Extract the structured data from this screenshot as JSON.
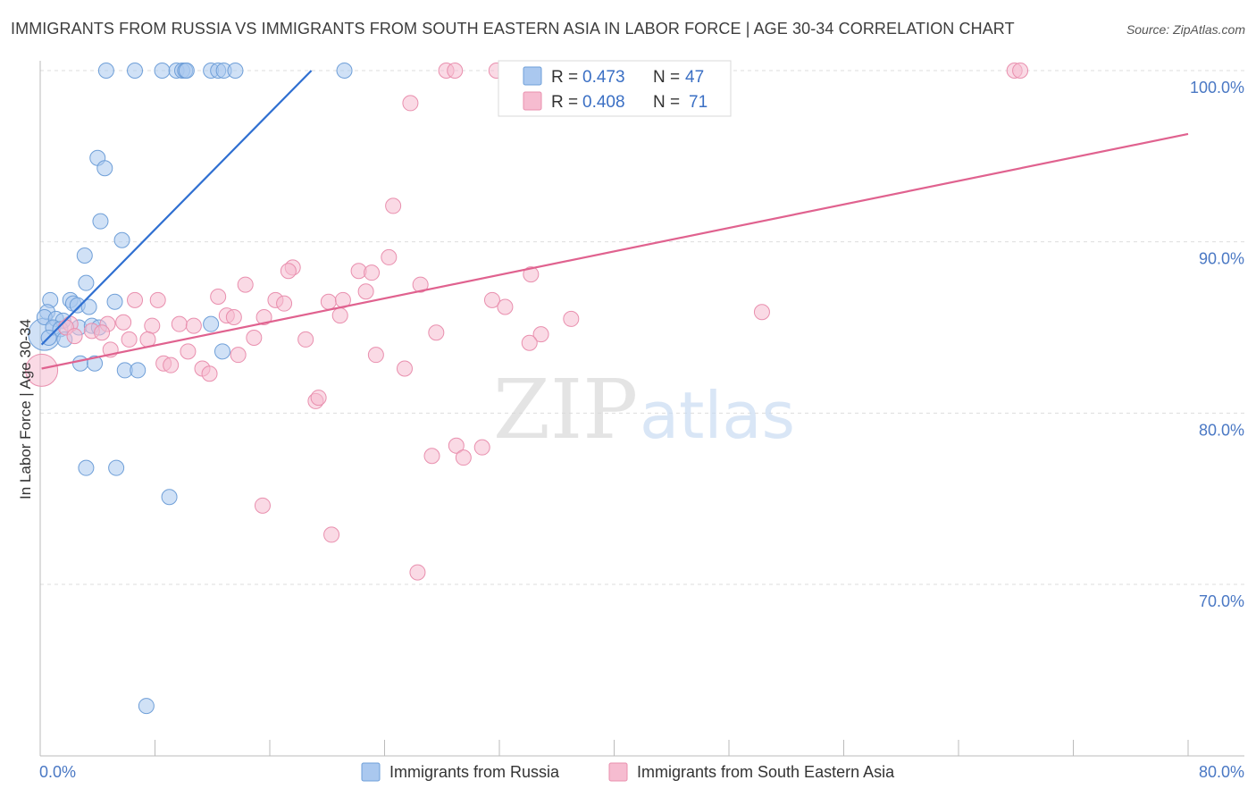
{
  "title": "IMMIGRANTS FROM RUSSIA VS IMMIGRANTS FROM SOUTH EASTERN ASIA IN LABOR FORCE | AGE 30-34 CORRELATION CHART",
  "source": "Source: ZipAtlas.com",
  "watermark": {
    "zip": "ZIP",
    "atlas": "atlas"
  },
  "colors": {
    "russia_fill": "#aac8ef",
    "russia_stroke": "#6f9fd8",
    "russia_line": "#2f6fd1",
    "sea_fill": "#f6bcd0",
    "sea_stroke": "#e98fae",
    "sea_line": "#e0628f",
    "tick_text": "#4a78c4",
    "grid": "#dddddd"
  },
  "legend": {
    "russia": {
      "r_label": "R =",
      "r_value": "0.473",
      "n_label": "N =",
      "n_value": "47"
    },
    "sea": {
      "r_label": "R =",
      "r_value": "0.408",
      "n_label": "N =",
      "n_value": "71"
    }
  },
  "chart_data": {
    "type": "scatter",
    "title": "IMMIGRANTS FROM RUSSIA VS IMMIGRANTS FROM SOUTH EASTERN ASIA IN LABOR FORCE | AGE 30-34 CORRELATION CHART",
    "xlabel": "",
    "ylabel": "In Labor Force | Age 30-34",
    "xlim": [
      0,
      80
    ],
    "ylim": [
      60,
      100.8
    ],
    "x_tick_labels": [
      {
        "value": 0,
        "label": "0.0%"
      },
      {
        "value": 80,
        "label": "80.0%"
      }
    ],
    "y_tick_labels": [
      {
        "value": 100,
        "label": "100.0%"
      },
      {
        "value": 90,
        "label": "90.0%"
      },
      {
        "value": 80,
        "label": "80.0%"
      },
      {
        "value": 70,
        "label": "70.0%"
      }
    ],
    "grid": true,
    "legend_position": "top-center",
    "series": [
      {
        "name": "Immigrants from Russia",
        "color": "#aac8ef",
        "trendline": {
          "x": [
            0.1,
            18.9
          ],
          "y": [
            84.0,
            100.0
          ]
        },
        "points": [
          [
            4.6,
            100
          ],
          [
            6.6,
            100
          ],
          [
            8.5,
            100
          ],
          [
            9.5,
            100
          ],
          [
            9.9,
            100
          ],
          [
            10.1,
            100
          ],
          [
            10.2,
            100
          ],
          [
            11.9,
            100
          ],
          [
            12.4,
            100
          ],
          [
            12.8,
            100
          ],
          [
            13.6,
            100
          ],
          [
            21.2,
            100
          ],
          [
            4.0,
            94.9
          ],
          [
            4.5,
            94.3
          ],
          [
            4.2,
            91.2
          ],
          [
            5.7,
            90.1
          ],
          [
            3.1,
            89.2
          ],
          [
            0.7,
            86.6
          ],
          [
            3.2,
            87.6
          ],
          [
            2.1,
            86.6
          ],
          [
            2.3,
            86.4
          ],
          [
            2.6,
            86.3
          ],
          [
            3.4,
            86.2
          ],
          [
            5.2,
            86.5
          ],
          [
            0.5,
            85.9
          ],
          [
            0.3,
            85.6
          ],
          [
            1.1,
            85.5
          ],
          [
            1.6,
            85.4
          ],
          [
            0.9,
            85.0
          ],
          [
            1.4,
            84.9
          ],
          [
            2.7,
            85.0
          ],
          [
            3.6,
            85.1
          ],
          [
            4.1,
            85.0
          ],
          [
            11.9,
            85.2
          ],
          [
            0.6,
            84.4
          ],
          [
            1.7,
            84.3
          ],
          [
            12.7,
            83.6
          ],
          [
            2.8,
            82.9
          ],
          [
            3.8,
            82.9
          ],
          [
            5.9,
            82.5
          ],
          [
            6.8,
            82.5
          ],
          [
            3.2,
            76.8
          ],
          [
            5.3,
            76.8
          ],
          [
            9.0,
            75.1
          ],
          [
            7.4,
            62.9
          ]
        ],
        "large_points": [
          [
            0.3,
            84.6
          ]
        ]
      },
      {
        "name": "Immigrants from South Eastern Asia",
        "color": "#f6bcd0",
        "trendline": {
          "x": [
            0.1,
            80.0
          ],
          "y": [
            82.6,
            96.3
          ]
        },
        "points": [
          [
            28.3,
            100
          ],
          [
            28.9,
            100
          ],
          [
            31.8,
            100
          ],
          [
            42.5,
            100
          ],
          [
            67.9,
            100
          ],
          [
            68.3,
            100
          ],
          [
            25.8,
            98.1
          ],
          [
            24.6,
            92.1
          ],
          [
            24.3,
            89.1
          ],
          [
            17.6,
            88.5
          ],
          [
            17.3,
            88.3
          ],
          [
            22.2,
            88.3
          ],
          [
            23.1,
            88.2
          ],
          [
            34.2,
            88.1
          ],
          [
            14.3,
            87.5
          ],
          [
            26.5,
            87.5
          ],
          [
            22.7,
            87.1
          ],
          [
            6.6,
            86.6
          ],
          [
            8.2,
            86.6
          ],
          [
            12.4,
            86.8
          ],
          [
            16.4,
            86.6
          ],
          [
            17.0,
            86.4
          ],
          [
            20.1,
            86.5
          ],
          [
            21.1,
            86.6
          ],
          [
            31.5,
            86.6
          ],
          [
            32.4,
            86.2
          ],
          [
            15.6,
            85.6
          ],
          [
            13.0,
            85.7
          ],
          [
            13.5,
            85.6
          ],
          [
            20.9,
            85.7
          ],
          [
            37.0,
            85.5
          ],
          [
            50.3,
            85.9
          ],
          [
            2.1,
            85.2
          ],
          [
            4.7,
            85.2
          ],
          [
            5.8,
            85.3
          ],
          [
            7.8,
            85.1
          ],
          [
            9.7,
            85.2
          ],
          [
            10.7,
            85.1
          ],
          [
            1.8,
            85.0
          ],
          [
            3.6,
            84.8
          ],
          [
            4.3,
            84.7
          ],
          [
            2.4,
            84.5
          ],
          [
            6.2,
            84.3
          ],
          [
            7.5,
            84.3
          ],
          [
            14.9,
            84.4
          ],
          [
            18.5,
            84.3
          ],
          [
            27.6,
            84.7
          ],
          [
            34.9,
            84.6
          ],
          [
            34.1,
            84.1
          ],
          [
            4.9,
            83.7
          ],
          [
            10.3,
            83.6
          ],
          [
            13.8,
            83.4
          ],
          [
            23.4,
            83.4
          ],
          [
            8.6,
            82.9
          ],
          [
            9.1,
            82.8
          ],
          [
            11.3,
            82.6
          ],
          [
            11.8,
            82.3
          ],
          [
            25.4,
            82.6
          ],
          [
            19.2,
            80.7
          ],
          [
            19.4,
            80.9
          ],
          [
            29.0,
            78.1
          ],
          [
            30.8,
            78.0
          ],
          [
            27.3,
            77.5
          ],
          [
            29.5,
            77.4
          ],
          [
            15.5,
            74.6
          ],
          [
            20.3,
            72.9
          ],
          [
            26.3,
            70.7
          ]
        ],
        "large_points": [
          [
            0.1,
            82.5
          ]
        ]
      }
    ]
  },
  "bottom_legend": {
    "russia": "Immigrants from Russia",
    "sea": "Immigrants from South Eastern Asia"
  }
}
